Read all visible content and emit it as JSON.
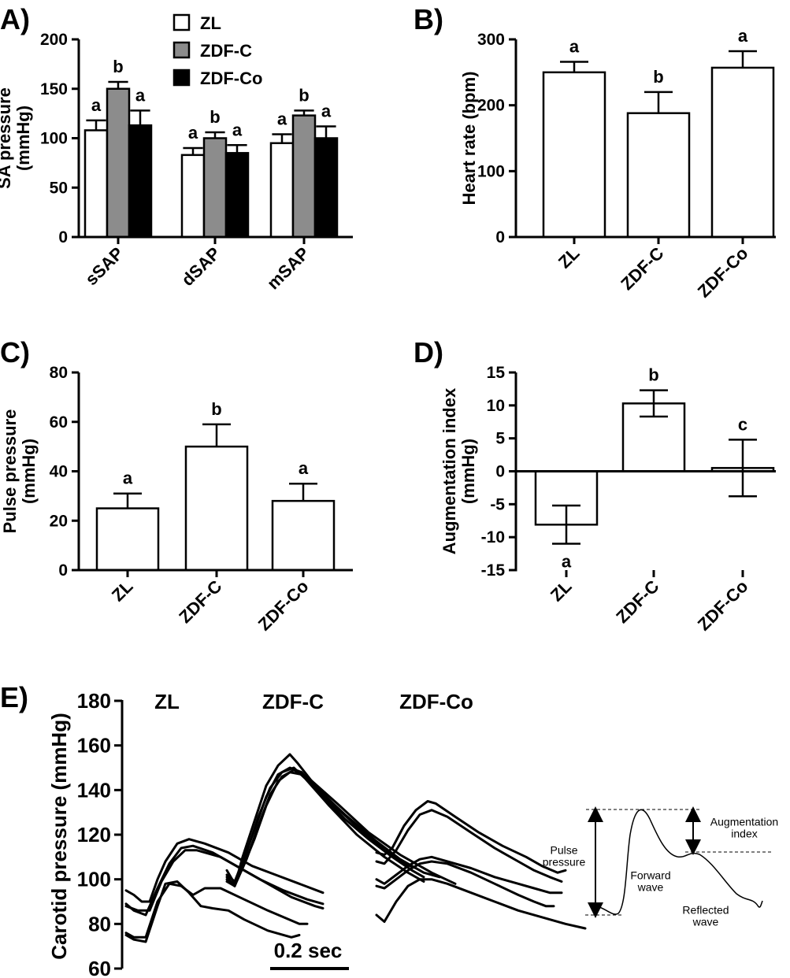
{
  "panels": [
    {
      "id": "A",
      "letter": "A)",
      "type": "bar",
      "ylabel": "SA pressure\n(mmHg)",
      "ylim": [
        0,
        200
      ],
      "ticks": [
        0,
        50,
        100,
        150,
        200
      ],
      "categories": [
        "sSAP",
        "dSAP",
        "mSAP"
      ],
      "legend": {
        "position": "top",
        "entries": [
          {
            "name": "ZL",
            "color": "#ffffff"
          },
          {
            "name": "ZDF-C",
            "color": "#8c8c8c"
          },
          {
            "name": "ZDF-Co",
            "color": "#000000"
          }
        ]
      },
      "series": [
        {
          "name": "ZL",
          "color": "#ffffff",
          "values": [
            108,
            83,
            95
          ],
          "errors": [
            10,
            7,
            9
          ],
          "labels": [
            "a",
            "a",
            "a"
          ]
        },
        {
          "name": "ZDF-C",
          "color": "#8c8c8c",
          "values": [
            150,
            100,
            123
          ],
          "errors": [
            7,
            6,
            5
          ],
          "labels": [
            "b",
            "b",
            "b"
          ]
        },
        {
          "name": "ZDF-Co",
          "color": "#000000",
          "values": [
            113,
            85,
            100
          ],
          "errors": [
            15,
            8,
            12
          ],
          "labels": [
            "a",
            "a",
            "a"
          ]
        }
      ]
    },
    {
      "id": "B",
      "letter": "B)",
      "type": "bar",
      "ylabel": "Heart rate (bpm)",
      "ylim": [
        0,
        300
      ],
      "ticks": [
        0,
        100,
        200,
        300
      ],
      "categories": [
        "ZL",
        "ZDF-C",
        "ZDF-Co"
      ],
      "series": [
        {
          "name": "",
          "color": "#ffffff",
          "values": [
            250,
            188,
            257
          ],
          "errors": [
            16,
            32,
            25
          ],
          "labels": [
            "a",
            "b",
            "a"
          ]
        }
      ]
    },
    {
      "id": "C",
      "letter": "C)",
      "type": "bar",
      "ylabel": "Pulse pressure\n(mmHg)",
      "ylim": [
        0,
        80
      ],
      "ticks": [
        0,
        20,
        40,
        60,
        80
      ],
      "categories": [
        "ZL",
        "ZDF-C",
        "ZDF-Co"
      ],
      "series": [
        {
          "name": "",
          "color": "#ffffff",
          "values": [
            25,
            50,
            28
          ],
          "errors": [
            6,
            9,
            7
          ],
          "labels": [
            "a",
            "b",
            "a"
          ]
        }
      ]
    },
    {
      "id": "D",
      "letter": "D)",
      "type": "bar",
      "ylabel": "Augmentation index\n(mmHg)",
      "ylim": [
        -15,
        15
      ],
      "ticks": [
        -15,
        -10,
        -5,
        0,
        5,
        10,
        15
      ],
      "categories": [
        "ZL",
        "ZDF-C",
        "ZDF-Co"
      ],
      "series": [
        {
          "name": "",
          "color": "#ffffff",
          "values": [
            -8.1,
            10.3,
            0.5
          ],
          "errors": [
            2.9,
            2.0,
            4.3
          ],
          "labels": [
            "a",
            "b",
            "c"
          ]
        }
      ]
    }
  ],
  "panelE": {
    "letter": "E)",
    "type": "line",
    "ylabel": "Carotid pressure (mmHg)",
    "ylim": [
      60,
      180
    ],
    "ticks": [
      60,
      80,
      100,
      120,
      140,
      160,
      180
    ],
    "group_titles": [
      "ZL",
      "ZDF-C",
      "ZDF-Co"
    ],
    "scale_bar": "0.2 sec",
    "groups": [
      {
        "name": "ZL",
        "traces": [
          [
            [
              0,
              95
            ],
            [
              0.02,
              93
            ],
            [
              0.04,
              90
            ],
            [
              0.06,
              90
            ],
            [
              0.08,
              100
            ],
            [
              0.1,
              108
            ],
            [
              0.13,
              116
            ],
            [
              0.16,
              118
            ],
            [
              0.2,
              116
            ],
            [
              0.26,
              112
            ],
            [
              0.32,
              106
            ],
            [
              0.38,
              102
            ],
            [
              0.44,
              98
            ],
            [
              0.5,
              94
            ]
          ],
          [
            [
              0,
              89
            ],
            [
              0.02,
              86
            ],
            [
              0.05,
              84
            ],
            [
              0.08,
              96
            ],
            [
              0.11,
              107
            ],
            [
              0.14,
              114
            ],
            [
              0.17,
              115
            ],
            [
              0.22,
              112
            ],
            [
              0.28,
              106
            ],
            [
              0.34,
              100
            ],
            [
              0.4,
              95
            ],
            [
              0.46,
              91
            ],
            [
              0.5,
              89
            ]
          ],
          [
            [
              0,
              88
            ],
            [
              0.03,
              86
            ],
            [
              0.06,
              86
            ],
            [
              0.09,
              99
            ],
            [
              0.12,
              108
            ],
            [
              0.15,
              113
            ],
            [
              0.18,
              113
            ],
            [
              0.24,
              110
            ],
            [
              0.3,
              104
            ],
            [
              0.36,
              98
            ],
            [
              0.42,
              92
            ],
            [
              0.48,
              88
            ],
            [
              0.5,
              87
            ]
          ],
          [
            [
              0,
              76
            ],
            [
              0.02,
              74
            ],
            [
              0.05,
              74
            ],
            [
              0.08,
              90
            ],
            [
              0.11,
              98
            ],
            [
              0.14,
              97
            ],
            [
              0.17,
              93
            ],
            [
              0.2,
              96
            ],
            [
              0.24,
              96
            ],
            [
              0.3,
              91
            ],
            [
              0.36,
              86
            ],
            [
              0.4,
              83
            ],
            [
              0.44,
              80
            ],
            [
              0.46,
              80
            ]
          ],
          [
            [
              0,
              75
            ],
            [
              0.02,
              73
            ],
            [
              0.05,
              72
            ],
            [
              0.08,
              88
            ],
            [
              0.1,
              98
            ],
            [
              0.13,
              99
            ],
            [
              0.16,
              94
            ],
            [
              0.19,
              88
            ],
            [
              0.22,
              87
            ],
            [
              0.26,
              86
            ],
            [
              0.3,
              82
            ],
            [
              0.36,
              77
            ],
            [
              0.42,
              74
            ],
            [
              0.44,
              75
            ]
          ]
        ]
      },
      {
        "name": "ZDF-C",
        "traces": [
          [
            [
              0,
              99
            ],
            [
              0.02,
              97
            ],
            [
              0.04,
              110
            ],
            [
              0.07,
              126
            ],
            [
              0.1,
              142
            ],
            [
              0.13,
              151
            ],
            [
              0.16,
              156
            ],
            [
              0.18,
              152
            ],
            [
              0.22,
              143
            ],
            [
              0.28,
              132
            ],
            [
              0.34,
              122
            ],
            [
              0.4,
              113
            ],
            [
              0.45,
              107
            ],
            [
              0.48,
              105
            ]
          ],
          [
            [
              0,
              102
            ],
            [
              0.02,
              99
            ],
            [
              0.04,
              108
            ],
            [
              0.07,
              122
            ],
            [
              0.1,
              137
            ],
            [
              0.13,
              147
            ],
            [
              0.16,
              150
            ],
            [
              0.19,
              148
            ],
            [
              0.24,
              138
            ],
            [
              0.3,
              127
            ],
            [
              0.36,
              118
            ],
            [
              0.42,
              110
            ],
            [
              0.47,
              104
            ],
            [
              0.5,
              101
            ]
          ],
          [
            [
              0,
              104
            ],
            [
              0.02,
              98
            ],
            [
              0.04,
              105
            ],
            [
              0.07,
              118
            ],
            [
              0.1,
              133
            ],
            [
              0.13,
              144
            ],
            [
              0.16,
              148
            ],
            [
              0.19,
              147
            ],
            [
              0.24,
              139
            ],
            [
              0.3,
              129
            ],
            [
              0.38,
              117
            ],
            [
              0.44,
              109
            ],
            [
              0.5,
              103
            ],
            [
              0.54,
              101
            ]
          ],
          [
            [
              0,
              101
            ],
            [
              0.02,
              97
            ],
            [
              0.05,
              112
            ],
            [
              0.08,
              128
            ],
            [
              0.11,
              141
            ],
            [
              0.14,
              148
            ],
            [
              0.17,
              150
            ],
            [
              0.2,
              145
            ],
            [
              0.26,
              133
            ],
            [
              0.33,
              120
            ],
            [
              0.4,
              110
            ],
            [
              0.46,
              103
            ],
            [
              0.5,
              99
            ]
          ],
          [
            [
              0,
              100
            ],
            [
              0.02,
              97
            ],
            [
              0.05,
              109
            ],
            [
              0.08,
              124
            ],
            [
              0.11,
              138
            ],
            [
              0.14,
              146
            ],
            [
              0.17,
              149
            ],
            [
              0.21,
              145
            ],
            [
              0.28,
              134
            ],
            [
              0.36,
              121
            ],
            [
              0.44,
              111
            ],
            [
              0.52,
              103
            ],
            [
              0.58,
              98
            ]
          ]
        ]
      },
      {
        "name": "ZDF-Co",
        "traces": [
          [
            [
              0,
              112
            ],
            [
              0.02,
              111
            ],
            [
              0.04,
              114
            ],
            [
              0.07,
              124
            ],
            [
              0.1,
              131
            ],
            [
              0.13,
              135
            ],
            [
              0.15,
              134
            ],
            [
              0.2,
              128
            ],
            [
              0.26,
              121
            ],
            [
              0.32,
              115
            ],
            [
              0.38,
              110
            ],
            [
              0.42,
              106
            ],
            [
              0.46,
              103
            ],
            [
              0.48,
              104
            ]
          ],
          [
            [
              0,
              108
            ],
            [
              0.02,
              107
            ],
            [
              0.05,
              113
            ],
            [
              0.08,
              122
            ],
            [
              0.11,
              129
            ],
            [
              0.14,
              131
            ],
            [
              0.18,
              128
            ],
            [
              0.24,
              121
            ],
            [
              0.3,
              114
            ],
            [
              0.36,
              108
            ],
            [
              0.4,
              104
            ],
            [
              0.44,
              101
            ],
            [
              0.47,
              99
            ]
          ],
          [
            [
              0,
              100
            ],
            [
              0.02,
              98
            ],
            [
              0.05,
              102
            ],
            [
              0.08,
              106
            ],
            [
              0.11,
              109
            ],
            [
              0.14,
              110
            ],
            [
              0.18,
              108
            ],
            [
              0.24,
              105
            ],
            [
              0.3,
              101
            ],
            [
              0.36,
              98
            ],
            [
              0.4,
              96
            ],
            [
              0.44,
              94
            ],
            [
              0.47,
              94
            ]
          ],
          [
            [
              0,
              97
            ],
            [
              0.02,
              96
            ],
            [
              0.05,
              100
            ],
            [
              0.08,
              104
            ],
            [
              0.11,
              107
            ],
            [
              0.14,
              108
            ],
            [
              0.18,
              107
            ],
            [
              0.24,
              103
            ],
            [
              0.3,
              98
            ],
            [
              0.36,
              93
            ],
            [
              0.4,
              90
            ],
            [
              0.43,
              88
            ],
            [
              0.45,
              88
            ]
          ],
          [
            [
              0,
              84
            ],
            [
              0.02,
              81
            ],
            [
              0.05,
              90
            ],
            [
              0.08,
              97
            ],
            [
              0.11,
              100
            ],
            [
              0.14,
              100
            ],
            [
              0.18,
              98
            ],
            [
              0.24,
              94
            ],
            [
              0.3,
              90
            ],
            [
              0.36,
              86
            ],
            [
              0.42,
              83
            ],
            [
              0.48,
              80
            ],
            [
              0.53,
              78
            ]
          ]
        ]
      }
    ],
    "schematic": {
      "labels": {
        "pulse_pressure": "Pulse\npressure",
        "augmentation_index": "Augmentation\nindex",
        "forward_wave": "Forward\nwave",
        "reflected_wave": "Reflected\nwave"
      }
    }
  }
}
